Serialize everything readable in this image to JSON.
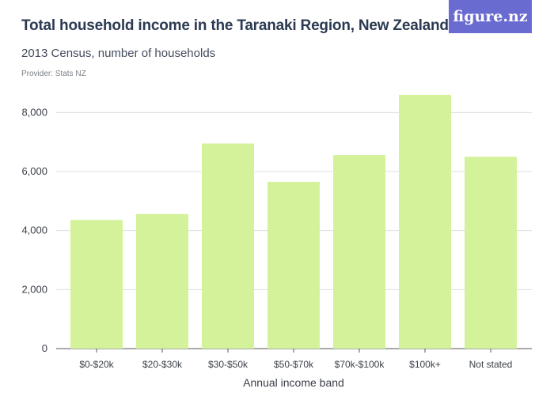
{
  "header": {
    "title": "Total household income in the Taranaki Region, New Zealand",
    "subtitle": "2013 Census, number of households",
    "provider": "Provider: Stats NZ",
    "logo_text": "figure.nz"
  },
  "colors": {
    "bar": "#d4f29a",
    "grid": "#d9d9d9",
    "logo_bg": "#6a6bd1"
  },
  "chart_data": {
    "type": "bar",
    "categories": [
      "$0-$20k",
      "$20-$30k",
      "$30-$50k",
      "$50-$70k",
      "$70k-$100k",
      "$100k+",
      "Not stated"
    ],
    "values": [
      4360,
      4560,
      6950,
      5650,
      6560,
      8600,
      6500
    ],
    "xlabel": "Annual income band",
    "ylabel": "",
    "ylim": [
      0,
      9000
    ],
    "yticks": [
      0,
      2000,
      4000,
      6000,
      8000
    ],
    "ytick_labels": [
      "0",
      "2,000",
      "4,000",
      "6,000",
      "8,000"
    ],
    "grid": true
  }
}
